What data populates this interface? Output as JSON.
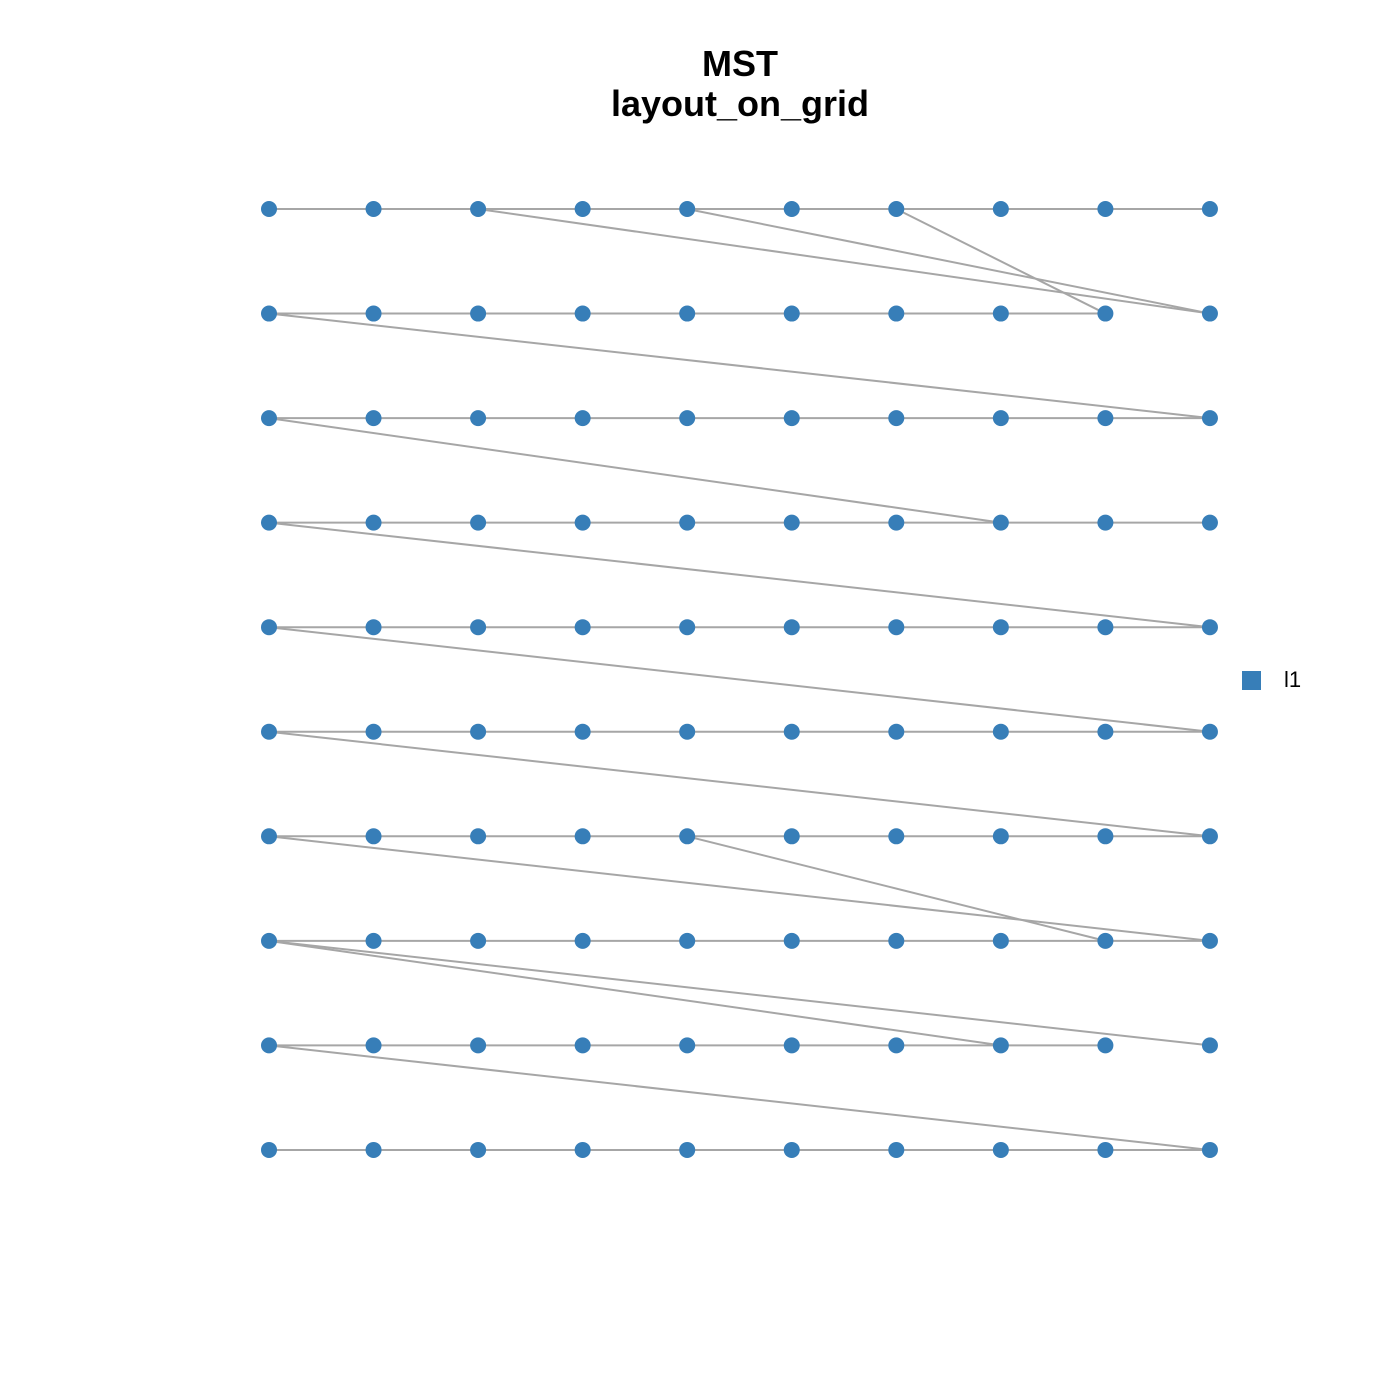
{
  "title": {
    "line1": "MST",
    "line2": "layout_on_grid"
  },
  "legend": {
    "label": "l1"
  }
}
